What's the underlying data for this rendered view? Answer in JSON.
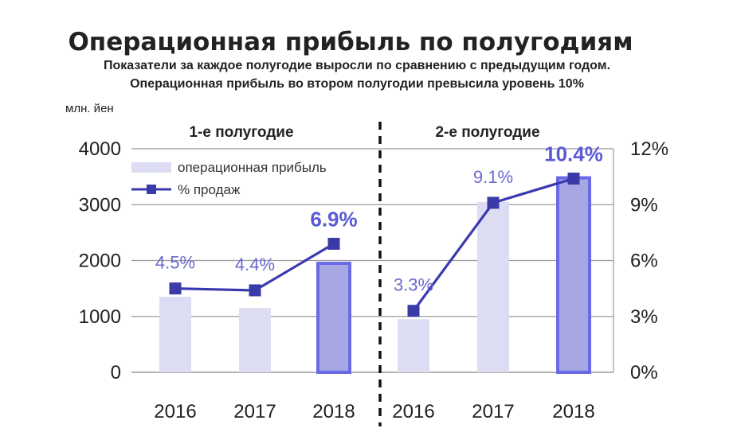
{
  "chart_data": {
    "type": "bar+line",
    "title": "Операционная прибыль по полугодиям",
    "subtitle_lines": [
      "Показатели за каждое полугодие выросли по сравнению с предыдущим годом.",
      "Операционная прибыль во втором полугодии превысила уровень 10%"
    ],
    "y_unit_label": "млн. йен",
    "y_left": {
      "ticks": [
        "0",
        "1000",
        "2000",
        "3000",
        "4000"
      ],
      "range": [
        0,
        4000
      ]
    },
    "y_right": {
      "ticks": [
        "0%",
        "3%",
        "6%",
        "9%",
        "12%"
      ],
      "range": [
        0,
        12
      ]
    },
    "groups": [
      {
        "label": "1-е полугодие",
        "categories": [
          "2016",
          "2017",
          "2018"
        ]
      },
      {
        "label": "2-е полугодие",
        "categories": [
          "2016",
          "2017",
          "2018"
        ]
      }
    ],
    "series": [
      {
        "name": "операционная прибыль",
        "type": "bar",
        "axis": "left",
        "values": [
          [
            1350,
            1150,
            1950
          ],
          [
            950,
            3050,
            3480
          ]
        ]
      },
      {
        "name": "% продаж",
        "type": "line",
        "axis": "right",
        "values": [
          [
            4.5,
            4.4,
            6.9
          ],
          [
            3.3,
            9.1,
            10.4
          ]
        ],
        "labels": [
          [
            "4.5%",
            "4.4%",
            "6.9%"
          ],
          [
            "3.3%",
            "9.1%",
            "10.4%"
          ]
        ]
      }
    ],
    "highlighted": [
      "6.9%",
      "10.4%"
    ],
    "grid": "horizontal",
    "legend_position": "top-left",
    "colors": {
      "bar": "#dcdcf2",
      "bar_highlight_fill": "#a7a7e4",
      "bar_highlight_stroke": "#6a6ae6",
      "line": "#3a3ab0",
      "marker": "#3a3aa8",
      "grid": "#9a9a9a",
      "label": "#6a6ad0",
      "label_highlight": "#5a5ad6"
    }
  }
}
